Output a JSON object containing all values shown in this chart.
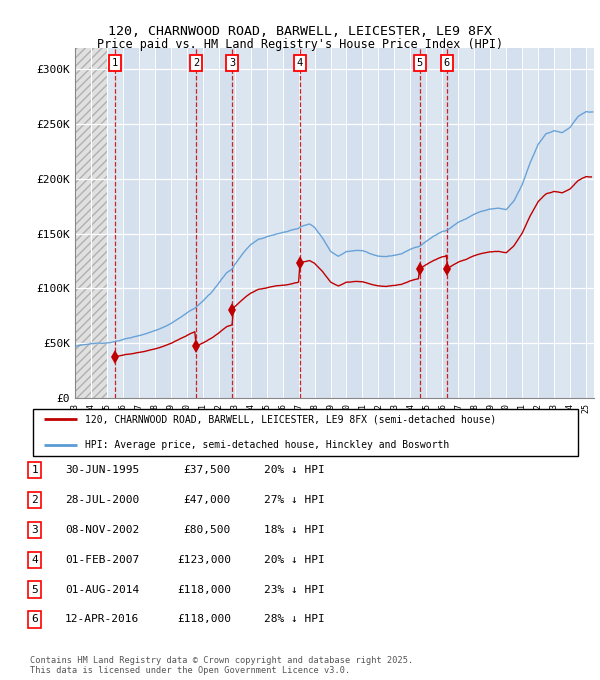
{
  "title_line1": "120, CHARNWOOD ROAD, BARWELL, LEICESTER, LE9 8FX",
  "title_line2": "Price paid vs. HM Land Registry's House Price Index (HPI)",
  "legend_line1": "120, CHARNWOOD ROAD, BARWELL, LEICESTER, LE9 8FX (semi-detached house)",
  "legend_line2": "HPI: Average price, semi-detached house, Hinckley and Bosworth",
  "footer_line1": "Contains HM Land Registry data © Crown copyright and database right 2025.",
  "footer_line2": "This data is licensed under the Open Government Licence v3.0.",
  "transactions": [
    {
      "num": 1,
      "date": "30-JUN-1995",
      "price": 37500,
      "pct": "20% ↓ HPI",
      "x": 1995.5
    },
    {
      "num": 2,
      "date": "28-JUL-2000",
      "price": 47000,
      "pct": "27% ↓ HPI",
      "x": 2000.58
    },
    {
      "num": 3,
      "date": "08-NOV-2002",
      "price": 80500,
      "pct": "18% ↓ HPI",
      "x": 2002.85
    },
    {
      "num": 4,
      "date": "01-FEB-2007",
      "price": 123000,
      "pct": "20% ↓ HPI",
      "x": 2007.08
    },
    {
      "num": 5,
      "date": "01-AUG-2014",
      "price": 118000,
      "pct": "23% ↓ HPI",
      "x": 2014.58
    },
    {
      "num": 6,
      "date": "12-APR-2016",
      "price": 118000,
      "pct": "28% ↓ HPI",
      "x": 2016.28
    }
  ],
  "hpi_color": "#5b9bd5",
  "price_color": "#c00000",
  "ylim": [
    0,
    320000
  ],
  "xlim_start": 1993.0,
  "xlim_end": 2025.5,
  "yticks": [
    0,
    50000,
    100000,
    150000,
    200000,
    250000,
    300000
  ],
  "ytick_labels": [
    "£0",
    "£50K",
    "£100K",
    "£150K",
    "£200K",
    "£250K",
    "£300K"
  ],
  "hatch_end": 1995.0,
  "bg_color": "#dce6f1",
  "hatch_color": "#d0d0d0"
}
